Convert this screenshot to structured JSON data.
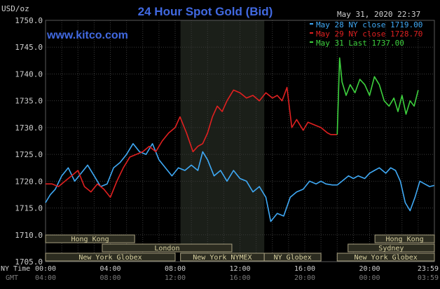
{
  "header": {
    "title": "24 Hour Spot Gold (Bid)",
    "currency_label": "USD/oz",
    "timestamp": "May 31, 2020 22:37",
    "website": "www.kitco.com"
  },
  "colors": {
    "background": "#000000",
    "grid": "#3a3a3a",
    "title": "#4169e1",
    "website": "#4169e1",
    "may28": "#3fa9f5",
    "may29": "#e02020",
    "may31": "#3ed23e",
    "session_bg": "#2c2c20",
    "session_border": "#a8a080",
    "session_text": "#d8d0a0",
    "text": "#d0d0d0"
  },
  "legend": [
    {
      "label": "May 28 NY close 1719.00",
      "color": "#3fa9f5"
    },
    {
      "label": "May 29 NY close 1728.70",
      "color": "#e02020"
    },
    {
      "label": "May 31 Last 1737.00",
      "color": "#3ed23e"
    }
  ],
  "sessions": [
    {
      "label": "Hong Kong",
      "start": 0,
      "end": 5.5,
      "row": 0
    },
    {
      "label": "London",
      "start": 3.5,
      "end": 11.5,
      "row": 1
    },
    {
      "label": "New York Globex",
      "start": 0,
      "end": 8,
      "row": 2
    },
    {
      "label": "New York NYMEX",
      "start": 8.33,
      "end": 13.5,
      "row": 2
    },
    {
      "label": "NY Globex",
      "start": 13.5,
      "end": 17,
      "row": 2
    },
    {
      "label": "Hong Kong",
      "start": 20.33,
      "end": 24,
      "row": 0
    },
    {
      "label": "Sydney",
      "start": 18.67,
      "end": 24,
      "row": 1
    },
    {
      "label": "New York Globex",
      "start": 18,
      "end": 24,
      "row": 2
    }
  ],
  "x_axis": {
    "ny_label": "NY Time",
    "gmt_label": "GMT",
    "ny_ticks": [
      "00:00",
      "04:00",
      "08:00",
      "12:00",
      "16:00",
      "20:00",
      "23:59"
    ],
    "gmt_ticks": [
      "04:00",
      "08:00",
      "12:00",
      "16:00",
      "20:00",
      "00:00",
      "03:59"
    ]
  },
  "chart_data": {
    "type": "line",
    "title": "24 Hour Spot Gold (Bid)",
    "ylabel": "USD/oz",
    "ylim": [
      1705,
      1750
    ],
    "yticks": [
      "1750.0",
      "1745.0",
      "1740.0",
      "1735.0",
      "1730.0",
      "1725.0",
      "1720.0",
      "1715.0",
      "1710.0",
      "1705.0"
    ],
    "xlim_hours": [
      0,
      24
    ],
    "shaded_region_hours": [
      8.33,
      13.5
    ],
    "grid": true,
    "legend_position": "top-right",
    "series": [
      {
        "name": "May 28 NY close 1719.00",
        "color": "#3fa9f5",
        "x": [
          0,
          0.3,
          0.6,
          1.0,
          1.4,
          1.8,
          2.2,
          2.6,
          3.0,
          3.4,
          3.8,
          4.2,
          4.6,
          5.0,
          5.4,
          5.8,
          6.2,
          6.6,
          7.0,
          7.4,
          7.8,
          8.2,
          8.6,
          9.0,
          9.4,
          9.7,
          10.0,
          10.4,
          10.8,
          11.2,
          11.6,
          12.0,
          12.4,
          12.8,
          13.2,
          13.6,
          13.9,
          14.3,
          14.7,
          15.1,
          15.5,
          15.9,
          16.3,
          16.7,
          17.0,
          17.3,
          17.7,
          18.0,
          18.3,
          18.7,
          19.0,
          19.3,
          19.7,
          20.0,
          20.3,
          20.6,
          21.0,
          21.3,
          21.6,
          21.9,
          22.2,
          22.5,
          22.8,
          23.1,
          23.4,
          23.7,
          23.99
        ],
        "values": [
          1716,
          1717.5,
          1718.5,
          1721,
          1722.5,
          1720,
          1721.5,
          1723,
          1721,
          1719,
          1719.5,
          1722.5,
          1723.5,
          1725,
          1727,
          1725.5,
          1725,
          1727,
          1724,
          1722.5,
          1721,
          1722.5,
          1722,
          1723,
          1722,
          1725.5,
          1724,
          1721,
          1722,
          1720,
          1722,
          1720.5,
          1720,
          1718,
          1719,
          1717,
          1712.5,
          1714,
          1713.5,
          1717,
          1718,
          1718.5,
          1720,
          1719.5,
          1720,
          1719.5,
          1719.3,
          1719.3,
          1720,
          1721,
          1720.5,
          1721,
          1720.5,
          1721.5,
          1722,
          1722.5,
          1721.5,
          1722.5,
          1722,
          1720,
          1716,
          1714.5,
          1717,
          1720,
          1719.5,
          1719,
          1719.2
        ]
      },
      {
        "name": "May 29 NY close 1728.70",
        "color": "#e02020",
        "x": [
          0,
          0.4,
          0.8,
          1.2,
          1.6,
          2.0,
          2.4,
          2.8,
          3.2,
          3.6,
          4.0,
          4.4,
          4.8,
          5.2,
          5.6,
          6.0,
          6.4,
          6.8,
          7.2,
          7.6,
          8.0,
          8.3,
          8.7,
          9.1,
          9.4,
          9.7,
          10.0,
          10.3,
          10.6,
          10.9,
          11.2,
          11.6,
          12.0,
          12.4,
          12.8,
          13.2,
          13.6,
          14.0,
          14.3,
          14.6,
          14.9,
          15.2,
          15.5,
          15.9,
          16.2,
          16.6,
          17.0,
          17.4,
          17.6,
          18.0
        ],
        "values": [
          1719.5,
          1719.5,
          1719,
          1720,
          1721,
          1722,
          1719,
          1718,
          1719.5,
          1718.5,
          1717,
          1720,
          1722.5,
          1724.5,
          1725,
          1725.5,
          1726.5,
          1725.5,
          1727.5,
          1729,
          1730,
          1732,
          1729,
          1725.5,
          1726.5,
          1727,
          1729,
          1732,
          1734,
          1733,
          1735,
          1737,
          1736.5,
          1735.5,
          1736,
          1735,
          1736.5,
          1735.5,
          1736,
          1735,
          1737.5,
          1730,
          1731.5,
          1729.5,
          1731,
          1730.5,
          1730,
          1729,
          1728.7,
          1728.7
        ]
      },
      {
        "name": "May 31 Last 1737.00",
        "color": "#3ed23e",
        "x": [
          18.0,
          18.15,
          18.3,
          18.55,
          18.8,
          19.1,
          19.4,
          19.7,
          20.0,
          20.3,
          20.6,
          20.9,
          21.2,
          21.5,
          21.75,
          22.0,
          22.25,
          22.5,
          22.75,
          23.0
        ],
        "values": [
          1728.7,
          1743,
          1738.5,
          1736,
          1738,
          1736.5,
          1739,
          1738,
          1736,
          1739.5,
          1738,
          1735,
          1734,
          1735.5,
          1733,
          1736,
          1732.5,
          1735,
          1734,
          1737
        ]
      }
    ]
  }
}
